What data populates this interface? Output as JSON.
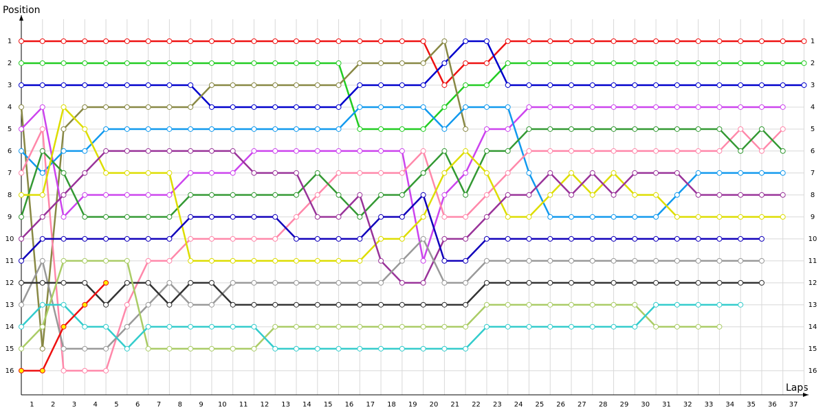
{
  "chart_data": {
    "type": "lap-chart",
    "y_label": "Position",
    "x_label": "Laps",
    "xlim": [
      0,
      37
    ],
    "ylim": [
      17.1,
      0
    ],
    "x": [
      0,
      1,
      2,
      3,
      4,
      5,
      6,
      7,
      8,
      9,
      10,
      11,
      12,
      13,
      14,
      15,
      16,
      17,
      18,
      19,
      20,
      21,
      22,
      23,
      24,
      25,
      26,
      27,
      28,
      29,
      30,
      31,
      32,
      33,
      34,
      35,
      36,
      37
    ],
    "xticks": [
      {
        "value": 0.5,
        "label": "1"
      },
      {
        "value": 1.5,
        "label": "2"
      },
      {
        "value": 2.5,
        "label": "3"
      },
      {
        "value": 3.5,
        "label": "4"
      },
      {
        "value": 4.5,
        "label": "5"
      },
      {
        "value": 5.5,
        "label": "6"
      },
      {
        "value": 6.5,
        "label": "7"
      },
      {
        "value": 7.5,
        "label": "8"
      },
      {
        "value": 8.5,
        "label": "9"
      },
      {
        "value": 9.5,
        "label": "10"
      },
      {
        "value": 10.5,
        "label": "11"
      },
      {
        "value": 11.5,
        "label": "12"
      },
      {
        "value": 12.5,
        "label": "13"
      },
      {
        "value": 13.5,
        "label": "14"
      },
      {
        "value": 14.5,
        "label": "15"
      },
      {
        "value": 15.5,
        "label": "16"
      },
      {
        "value": 16.5,
        "label": "17"
      },
      {
        "value": 17.5,
        "label": "18"
      },
      {
        "value": 18.5,
        "label": "19"
      },
      {
        "value": 19.5,
        "label": "20"
      },
      {
        "value": 20.5,
        "label": "21"
      },
      {
        "value": 21.5,
        "label": "22"
      },
      {
        "value": 22.5,
        "label": "23"
      },
      {
        "value": 23.5,
        "label": "24"
      },
      {
        "value": 24.5,
        "label": "25"
      },
      {
        "value": 25.5,
        "label": "26"
      },
      {
        "value": 26.5,
        "label": "27"
      },
      {
        "value": 27.5,
        "label": "28"
      },
      {
        "value": 28.5,
        "label": "29"
      },
      {
        "value": 29.5,
        "label": "30"
      },
      {
        "value": 30.5,
        "label": "31"
      },
      {
        "value": 31.5,
        "label": "32"
      },
      {
        "value": 32.5,
        "label": "33"
      },
      {
        "value": 33.5,
        "label": "34"
      },
      {
        "value": 34.5,
        "label": "35"
      },
      {
        "value": 35.5,
        "label": "36"
      },
      {
        "value": 36.5,
        "label": "37"
      }
    ],
    "yticks": [
      1,
      2,
      3,
      4,
      5,
      6,
      7,
      8,
      9,
      10,
      11,
      12,
      13,
      14,
      15,
      16
    ],
    "grid": true,
    "series": [
      {
        "color": "#ee1111",
        "values": [
          1,
          1,
          1,
          1,
          1,
          1,
          1,
          1,
          1,
          1,
          1,
          1,
          1,
          1,
          1,
          1,
          1,
          1,
          1,
          1,
          3,
          2,
          2,
          1,
          1,
          1,
          1,
          1,
          1,
          1,
          1,
          1,
          1,
          1,
          1,
          1,
          1,
          1
        ]
      },
      {
        "color": "#22cc22",
        "values": [
          2,
          2,
          2,
          2,
          2,
          2,
          2,
          2,
          2,
          2,
          2,
          2,
          2,
          2,
          2,
          2,
          5,
          5,
          5,
          5,
          4,
          3,
          3,
          2,
          2,
          2,
          2,
          2,
          2,
          2,
          2,
          2,
          2,
          2,
          2,
          2,
          2,
          2
        ]
      },
      {
        "color": "#0000cc",
        "values": [
          3,
          3,
          3,
          3,
          3,
          3,
          3,
          3,
          3,
          4,
          4,
          4,
          4,
          4,
          4,
          4,
          3,
          3,
          3,
          3,
          2,
          1,
          1,
          3,
          3,
          3,
          3,
          3,
          3,
          3,
          3,
          3,
          3,
          3,
          3,
          3,
          3,
          3
        ]
      },
      {
        "color": "#888844",
        "values": [
          4,
          15,
          5,
          4,
          4,
          4,
          4,
          4,
          4,
          3,
          3,
          3,
          3,
          3,
          3,
          3,
          2,
          2,
          2,
          2,
          1,
          5,
          null,
          null,
          null,
          null,
          null,
          null,
          null,
          null,
          null,
          null,
          null,
          null,
          null,
          null,
          null,
          null
        ]
      },
      {
        "color": "#cc44ee",
        "values": [
          5,
          4,
          9,
          8,
          8,
          8,
          8,
          8,
          7,
          7,
          7,
          6,
          6,
          6,
          6,
          6,
          6,
          6,
          6,
          11,
          8,
          7,
          5,
          5,
          4,
          4,
          4,
          4,
          4,
          4,
          4,
          4,
          4,
          4,
          4,
          4,
          4,
          null
        ]
      },
      {
        "color": "#1199ee",
        "values": [
          6,
          7,
          6,
          6,
          5,
          5,
          5,
          5,
          5,
          5,
          5,
          5,
          5,
          5,
          5,
          5,
          4,
          4,
          4,
          4,
          5,
          4,
          4,
          4,
          7,
          9,
          9,
          9,
          9,
          9,
          9,
          8,
          7,
          7,
          7,
          7,
          7,
          null
        ]
      },
      {
        "color": "#ff88aa",
        "values": [
          7,
          5,
          16,
          16,
          16,
          13,
          11,
          11,
          10,
          10,
          10,
          10,
          10,
          9,
          8,
          7,
          7,
          7,
          7,
          6,
          9,
          9,
          8,
          7,
          6,
          6,
          6,
          6,
          6,
          6,
          6,
          6,
          6,
          6,
          5,
          6,
          5,
          null
        ]
      },
      {
        "color": "#339933",
        "values": [
          9,
          6,
          7,
          9,
          9,
          9,
          9,
          9,
          8,
          8,
          8,
          8,
          8,
          8,
          7,
          8,
          9,
          8,
          8,
          7,
          6,
          8,
          6,
          6,
          5,
          5,
          5,
          5,
          5,
          5,
          5,
          5,
          5,
          5,
          6,
          5,
          6,
          null
        ]
      },
      {
        "color": "#dddd00",
        "values": [
          8,
          8,
          4,
          5,
          7,
          7,
          7,
          7,
          11,
          11,
          11,
          11,
          11,
          11,
          11,
          11,
          11,
          10,
          10,
          9,
          7,
          6,
          7,
          9,
          9,
          8,
          7,
          8,
          7,
          8,
          8,
          9,
          9,
          9,
          9,
          9,
          9,
          null
        ]
      },
      {
        "color": "#993399",
        "values": [
          10,
          9,
          8,
          7,
          6,
          6,
          6,
          6,
          6,
          6,
          6,
          7,
          7,
          7,
          9,
          9,
          8,
          11,
          12,
          12,
          10,
          10,
          9,
          8,
          8,
          7,
          8,
          7,
          8,
          7,
          7,
          7,
          8,
          8,
          8,
          8,
          8,
          null
        ]
      },
      {
        "color": "#1100bb",
        "values": [
          11,
          10,
          10,
          10,
          10,
          10,
          10,
          10,
          9,
          9,
          9,
          9,
          9,
          10,
          10,
          10,
          10,
          9,
          9,
          8,
          11,
          11,
          10,
          10,
          10,
          10,
          10,
          10,
          10,
          10,
          10,
          10,
          10,
          10,
          10,
          10,
          null,
          null
        ]
      },
      {
        "color": "#999999",
        "values": [
          13,
          11,
          15,
          15,
          15,
          14,
          13,
          12,
          13,
          13,
          12,
          12,
          12,
          12,
          12,
          12,
          12,
          12,
          11,
          10,
          12,
          12,
          11,
          11,
          11,
          11,
          11,
          11,
          11,
          11,
          11,
          11,
          11,
          11,
          11,
          11,
          null,
          null
        ]
      },
      {
        "color": "#333333",
        "values": [
          12,
          12,
          12,
          12,
          13,
          12,
          12,
          13,
          12,
          12,
          13,
          13,
          13,
          13,
          13,
          13,
          13,
          13,
          13,
          13,
          13,
          13,
          12,
          12,
          12,
          12,
          12,
          12,
          12,
          12,
          12,
          12,
          12,
          12,
          12,
          12,
          null,
          null
        ]
      },
      {
        "color": "#aacc66",
        "values": [
          15,
          14,
          11,
          11,
          11,
          11,
          15,
          15,
          15,
          15,
          15,
          15,
          14,
          14,
          14,
          14,
          14,
          14,
          14,
          14,
          14,
          14,
          13,
          13,
          13,
          13,
          13,
          13,
          13,
          13,
          14,
          14,
          14,
          14,
          null,
          null,
          null,
          null
        ]
      },
      {
        "color": "#33cccc",
        "values": [
          14,
          13,
          13,
          14,
          14,
          15,
          14,
          14,
          14,
          14,
          14,
          14,
          15,
          15,
          15,
          15,
          15,
          15,
          15,
          15,
          15,
          15,
          14,
          14,
          14,
          14,
          14,
          14,
          14,
          14,
          13,
          13,
          13,
          13,
          13,
          null,
          null,
          null
        ]
      },
      {
        "color": "#ee1111",
        "marker_color": "#ffee00",
        "values": [
          16,
          16,
          14,
          13,
          12,
          null,
          null,
          null,
          null,
          null,
          null,
          null,
          null,
          null,
          null,
          null,
          null,
          null,
          null,
          null,
          null,
          null,
          null,
          null,
          null,
          null,
          null,
          null,
          null,
          null,
          null,
          null,
          null,
          null,
          null,
          null,
          null,
          null
        ]
      }
    ]
  }
}
